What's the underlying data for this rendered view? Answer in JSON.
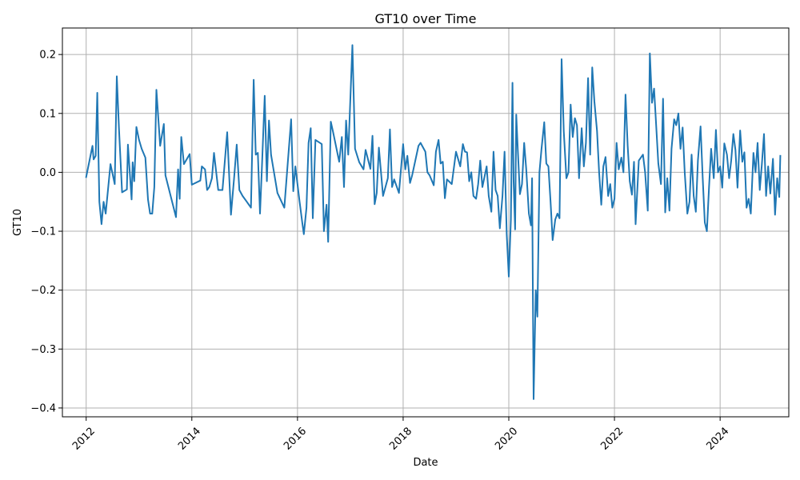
{
  "chart_data": {
    "type": "line",
    "title": "GT10 over Time",
    "xlabel": "Date",
    "ylabel": "GT10",
    "xlim": [
      2011.55,
      2025.3
    ],
    "ylim": [
      -0.415,
      0.245
    ],
    "x_ticks": [
      2012,
      2014,
      2016,
      2018,
      2020,
      2022,
      2024
    ],
    "x_tick_labels": [
      "2012",
      "2014",
      "2016",
      "2018",
      "2020",
      "2022",
      "2024"
    ],
    "y_ticks": [
      -0.4,
      -0.3,
      -0.2,
      -0.1,
      0.0,
      0.1,
      0.2
    ],
    "y_tick_labels": [
      "−0.4",
      "−0.3",
      "−0.2",
      "−0.1",
      "0.0",
      "0.1",
      "0.2"
    ],
    "grid": true,
    "series": [
      {
        "color": "#1f77b4",
        "points": [
          [
            2012.0,
            -0.008
          ],
          [
            2012.04,
            0.01
          ],
          [
            2012.12,
            0.045
          ],
          [
            2012.14,
            0.022
          ],
          [
            2012.18,
            0.028
          ],
          [
            2012.21,
            0.135
          ],
          [
            2012.25,
            -0.05
          ],
          [
            2012.29,
            -0.088
          ],
          [
            2012.33,
            -0.05
          ],
          [
            2012.37,
            -0.07
          ],
          [
            2012.46,
            0.014
          ],
          [
            2012.54,
            -0.02
          ],
          [
            2012.58,
            0.163
          ],
          [
            2012.62,
            0.075
          ],
          [
            2012.68,
            -0.034
          ],
          [
            2012.77,
            -0.029
          ],
          [
            2012.79,
            0.047
          ],
          [
            2012.86,
            -0.046
          ],
          [
            2012.88,
            0.017
          ],
          [
            2012.91,
            -0.015
          ],
          [
            2012.95,
            0.077
          ],
          [
            2013.0,
            0.055
          ],
          [
            2013.05,
            0.04
          ],
          [
            2013.12,
            0.025
          ],
          [
            2013.17,
            -0.046
          ],
          [
            2013.21,
            -0.07
          ],
          [
            2013.25,
            -0.07
          ],
          [
            2013.29,
            -0.025
          ],
          [
            2013.33,
            0.14
          ],
          [
            2013.4,
            0.045
          ],
          [
            2013.47,
            0.082
          ],
          [
            2013.5,
            -0.005
          ],
          [
            2013.7,
            -0.076
          ],
          [
            2013.74,
            0.005
          ],
          [
            2013.77,
            -0.045
          ],
          [
            2013.8,
            0.06
          ],
          [
            2013.85,
            0.014
          ],
          [
            2013.96,
            0.031
          ],
          [
            2014.0,
            -0.021
          ],
          [
            2014.16,
            -0.014
          ],
          [
            2014.19,
            0.01
          ],
          [
            2014.25,
            0.005
          ],
          [
            2014.29,
            -0.03
          ],
          [
            2014.33,
            -0.025
          ],
          [
            2014.38,
            -0.01
          ],
          [
            2014.42,
            0.033
          ],
          [
            2014.5,
            -0.03
          ],
          [
            2014.58,
            -0.03
          ],
          [
            2014.67,
            0.068
          ],
          [
            2014.74,
            -0.072
          ],
          [
            2014.8,
            -0.01
          ],
          [
            2014.85,
            0.047
          ],
          [
            2014.9,
            -0.03
          ],
          [
            2014.96,
            -0.04
          ],
          [
            2015.04,
            -0.05
          ],
          [
            2015.12,
            -0.06
          ],
          [
            2015.17,
            0.157
          ],
          [
            2015.21,
            0.03
          ],
          [
            2015.25,
            0.033
          ],
          [
            2015.29,
            -0.07
          ],
          [
            2015.32,
            -0.005
          ],
          [
            2015.38,
            0.13
          ],
          [
            2015.42,
            -0.015
          ],
          [
            2015.46,
            0.088
          ],
          [
            2015.5,
            0.03
          ],
          [
            2015.54,
            0.008
          ],
          [
            2015.62,
            -0.035
          ],
          [
            2015.75,
            -0.06
          ],
          [
            2015.88,
            0.09
          ],
          [
            2015.92,
            -0.032
          ],
          [
            2015.96,
            0.01
          ],
          [
            2016.04,
            -0.05
          ],
          [
            2016.09,
            -0.085
          ],
          [
            2016.12,
            -0.105
          ],
          [
            2016.17,
            -0.06
          ],
          [
            2016.21,
            0.05
          ],
          [
            2016.25,
            0.075
          ],
          [
            2016.29,
            -0.078
          ],
          [
            2016.34,
            0.055
          ],
          [
            2016.46,
            0.048
          ],
          [
            2016.5,
            -0.1
          ],
          [
            2016.55,
            -0.055
          ],
          [
            2016.58,
            -0.118
          ],
          [
            2016.63,
            0.086
          ],
          [
            2016.67,
            0.07
          ],
          [
            2016.79,
            0.018
          ],
          [
            2016.84,
            0.06
          ],
          [
            2016.88,
            -0.025
          ],
          [
            2016.92,
            0.088
          ],
          [
            2016.96,
            0.03
          ],
          [
            2017.04,
            0.216
          ],
          [
            2017.09,
            0.04
          ],
          [
            2017.17,
            0.017
          ],
          [
            2017.25,
            0.005
          ],
          [
            2017.29,
            0.038
          ],
          [
            2017.38,
            0.006
          ],
          [
            2017.42,
            0.062
          ],
          [
            2017.46,
            -0.054
          ],
          [
            2017.5,
            -0.035
          ],
          [
            2017.54,
            0.042
          ],
          [
            2017.62,
            -0.04
          ],
          [
            2017.71,
            -0.01
          ],
          [
            2017.75,
            0.073
          ],
          [
            2017.79,
            -0.025
          ],
          [
            2017.83,
            -0.012
          ],
          [
            2017.92,
            -0.035
          ],
          [
            2018.0,
            0.048
          ],
          [
            2018.04,
            0.005
          ],
          [
            2018.08,
            0.028
          ],
          [
            2018.13,
            -0.018
          ],
          [
            2018.17,
            -0.005
          ],
          [
            2018.29,
            0.045
          ],
          [
            2018.33,
            0.05
          ],
          [
            2018.42,
            0.035
          ],
          [
            2018.46,
            0.0
          ],
          [
            2018.5,
            -0.005
          ],
          [
            2018.58,
            -0.022
          ],
          [
            2018.62,
            0.035
          ],
          [
            2018.67,
            0.055
          ],
          [
            2018.71,
            0.015
          ],
          [
            2018.75,
            0.018
          ],
          [
            2018.79,
            -0.044
          ],
          [
            2018.83,
            -0.012
          ],
          [
            2018.92,
            -0.02
          ],
          [
            2019.0,
            0.035
          ],
          [
            2019.08,
            0.01
          ],
          [
            2019.13,
            0.048
          ],
          [
            2019.17,
            0.035
          ],
          [
            2019.21,
            0.034
          ],
          [
            2019.25,
            -0.015
          ],
          [
            2019.29,
            0.0
          ],
          [
            2019.33,
            -0.04
          ],
          [
            2019.38,
            -0.045
          ],
          [
            2019.42,
            -0.02
          ],
          [
            2019.46,
            0.02
          ],
          [
            2019.5,
            -0.025
          ],
          [
            2019.58,
            0.01
          ],
          [
            2019.62,
            -0.04
          ],
          [
            2019.67,
            -0.067
          ],
          [
            2019.71,
            0.035
          ],
          [
            2019.75,
            -0.03
          ],
          [
            2019.79,
            -0.04
          ],
          [
            2019.83,
            -0.095
          ],
          [
            2019.88,
            -0.04
          ],
          [
            2019.92,
            0.035
          ],
          [
            2019.96,
            -0.105
          ],
          [
            2020.0,
            -0.177
          ],
          [
            2020.04,
            -0.08
          ],
          [
            2020.07,
            0.152
          ],
          [
            2020.09,
            -0.015
          ],
          [
            2020.12,
            -0.097
          ],
          [
            2020.14,
            0.098
          ],
          [
            2020.17,
            0.04
          ],
          [
            2020.21,
            -0.037
          ],
          [
            2020.25,
            -0.02
          ],
          [
            2020.29,
            0.05
          ],
          [
            2020.33,
            0.005
          ],
          [
            2020.38,
            -0.07
          ],
          [
            2020.42,
            -0.09
          ],
          [
            2020.44,
            -0.01
          ],
          [
            2020.47,
            -0.385
          ],
          [
            2020.51,
            -0.2
          ],
          [
            2020.54,
            -0.245
          ],
          [
            2020.58,
            0.0
          ],
          [
            2020.62,
            0.04
          ],
          [
            2020.67,
            0.085
          ],
          [
            2020.71,
            0.015
          ],
          [
            2020.75,
            0.01
          ],
          [
            2020.79,
            -0.05
          ],
          [
            2020.83,
            -0.115
          ],
          [
            2020.88,
            -0.08
          ],
          [
            2020.92,
            -0.07
          ],
          [
            2020.96,
            -0.078
          ],
          [
            2021.0,
            0.192
          ],
          [
            2021.04,
            0.07
          ],
          [
            2021.09,
            -0.01
          ],
          [
            2021.13,
            0.0
          ],
          [
            2021.17,
            0.115
          ],
          [
            2021.21,
            0.06
          ],
          [
            2021.25,
            0.092
          ],
          [
            2021.29,
            0.08
          ],
          [
            2021.33,
            -0.01
          ],
          [
            2021.38,
            0.075
          ],
          [
            2021.42,
            0.01
          ],
          [
            2021.46,
            0.05
          ],
          [
            2021.5,
            0.16
          ],
          [
            2021.54,
            0.03
          ],
          [
            2021.58,
            0.178
          ],
          [
            2021.62,
            0.12
          ],
          [
            2021.67,
            0.07
          ],
          [
            2021.71,
            0.0
          ],
          [
            2021.75,
            -0.055
          ],
          [
            2021.79,
            0.01
          ],
          [
            2021.83,
            0.026
          ],
          [
            2021.88,
            -0.04
          ],
          [
            2021.92,
            -0.02
          ],
          [
            2021.96,
            -0.06
          ],
          [
            2022.0,
            -0.045
          ],
          [
            2022.04,
            0.05
          ],
          [
            2022.08,
            0.005
          ],
          [
            2022.13,
            0.025
          ],
          [
            2022.17,
            0.0
          ],
          [
            2022.21,
            0.132
          ],
          [
            2022.25,
            0.045
          ],
          [
            2022.29,
            -0.015
          ],
          [
            2022.33,
            -0.038
          ],
          [
            2022.37,
            0.018
          ],
          [
            2022.4,
            -0.088
          ],
          [
            2022.46,
            0.02
          ],
          [
            2022.54,
            0.03
          ],
          [
            2022.58,
            0.0
          ],
          [
            2022.63,
            -0.065
          ],
          [
            2022.67,
            0.202
          ],
          [
            2022.71,
            0.118
          ],
          [
            2022.75,
            0.142
          ],
          [
            2022.79,
            0.08
          ],
          [
            2022.83,
            0.015
          ],
          [
            2022.88,
            -0.02
          ],
          [
            2022.92,
            0.125
          ],
          [
            2022.96,
            -0.068
          ],
          [
            2023.0,
            -0.01
          ],
          [
            2023.04,
            -0.065
          ],
          [
            2023.08,
            0.04
          ],
          [
            2023.13,
            0.09
          ],
          [
            2023.17,
            0.08
          ],
          [
            2023.21,
            0.1
          ],
          [
            2023.25,
            0.04
          ],
          [
            2023.29,
            0.076
          ],
          [
            2023.33,
            0.0
          ],
          [
            2023.38,
            -0.07
          ],
          [
            2023.42,
            -0.05
          ],
          [
            2023.46,
            0.03
          ],
          [
            2023.5,
            -0.04
          ],
          [
            2023.54,
            -0.067
          ],
          [
            2023.58,
            0.02
          ],
          [
            2023.63,
            0.078
          ],
          [
            2023.67,
            -0.01
          ],
          [
            2023.71,
            -0.085
          ],
          [
            2023.75,
            -0.1
          ],
          [
            2023.79,
            -0.025
          ],
          [
            2023.83,
            0.04
          ],
          [
            2023.88,
            -0.01
          ],
          [
            2023.92,
            0.072
          ],
          [
            2023.96,
            0.0
          ],
          [
            2024.0,
            0.01
          ],
          [
            2024.04,
            -0.026
          ],
          [
            2024.08,
            0.049
          ],
          [
            2024.13,
            0.03
          ],
          [
            2024.17,
            -0.01
          ],
          [
            2024.21,
            0.02
          ],
          [
            2024.25,
            0.065
          ],
          [
            2024.29,
            0.038
          ],
          [
            2024.33,
            -0.026
          ],
          [
            2024.38,
            0.071
          ],
          [
            2024.42,
            0.018
          ],
          [
            2024.46,
            0.034
          ],
          [
            2024.5,
            -0.06
          ],
          [
            2024.54,
            -0.045
          ],
          [
            2024.58,
            -0.07
          ],
          [
            2024.63,
            0.033
          ],
          [
            2024.67,
            0.0
          ],
          [
            2024.71,
            0.05
          ],
          [
            2024.75,
            -0.03
          ],
          [
            2024.79,
            0.013
          ],
          [
            2024.83,
            0.065
          ],
          [
            2024.87,
            -0.04
          ],
          [
            2024.91,
            0.01
          ],
          [
            2024.95,
            -0.036
          ],
          [
            2025.0,
            0.023
          ],
          [
            2025.04,
            -0.072
          ],
          [
            2025.08,
            -0.01
          ],
          [
            2025.12,
            -0.042
          ],
          [
            2025.14,
            0.028
          ]
        ]
      }
    ]
  }
}
